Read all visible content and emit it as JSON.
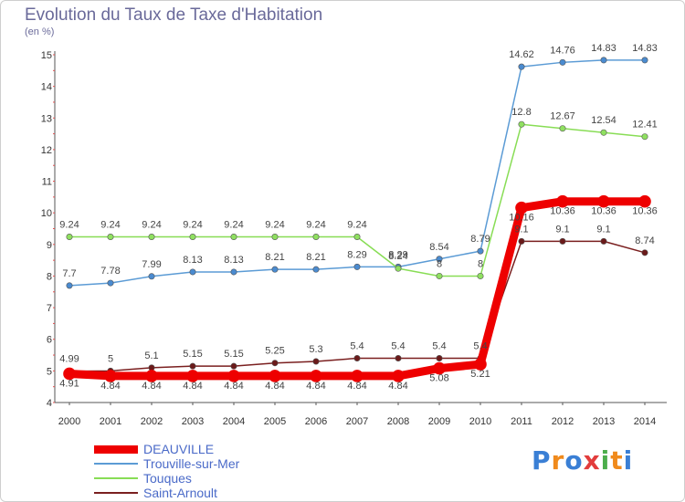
{
  "title": "Evolution du Taux de Taxe d'Habitation",
  "unit": "(en %)",
  "logo_text": "Proxiti",
  "chart_data": {
    "type": "line",
    "x": [
      2000,
      2001,
      2002,
      2003,
      2004,
      2005,
      2006,
      2007,
      2008,
      2009,
      2010,
      2011,
      2012,
      2013,
      2014
    ],
    "ylim": [
      4,
      15
    ],
    "yticks": [
      4,
      5,
      6,
      7,
      8,
      9,
      10,
      11,
      12,
      13,
      14,
      15
    ],
    "grid": false,
    "legend": "bottom-left",
    "series": [
      {
        "name": "DEAUVILLE",
        "color": "#ee0000",
        "width": 9,
        "values": [
          4.91,
          4.84,
          4.84,
          4.84,
          4.84,
          4.84,
          4.84,
          4.84,
          4.84,
          5.08,
          5.21,
          10.16,
          10.36,
          10.36,
          10.36
        ],
        "labels": [
          "4.91",
          "4.84",
          "4.84",
          "4.84",
          "4.84",
          "4.84",
          "4.84",
          "4.84",
          "4.84",
          "5.08",
          "5.21",
          "10.16",
          "10.36",
          "10.36",
          "10.36"
        ]
      },
      {
        "name": "Trouville-sur-Mer",
        "color": "#5b9bd5",
        "width": 1.5,
        "values": [
          7.7,
          7.78,
          7.99,
          8.13,
          8.13,
          8.21,
          8.21,
          8.29,
          8.29,
          8.54,
          8.79,
          14.62,
          14.76,
          14.83,
          14.83
        ],
        "labels": [
          "7.7",
          "7.78",
          "7.99",
          "8.13",
          "8.13",
          "8.21",
          "8.21",
          "8.29",
          "8.29",
          "8.54",
          "8.79",
          "14.62",
          "14.76",
          "14.83",
          "14.83"
        ]
      },
      {
        "name": "Touques",
        "color": "#88dd55",
        "width": 1.5,
        "values": [
          9.24,
          9.24,
          9.24,
          9.24,
          9.24,
          9.24,
          9.24,
          9.24,
          8.24,
          8,
          8,
          12.8,
          12.67,
          12.54,
          12.41
        ],
        "labels": [
          "9.24",
          "9.24",
          "9.24",
          "9.24",
          "9.24",
          "9.24",
          "9.24",
          "9.24",
          "8.24",
          "8",
          "8",
          "12.8",
          "12.67",
          "12.54",
          "12.41"
        ]
      },
      {
        "name": "Saint-Arnoult",
        "color": "#7a1f1f",
        "width": 1.5,
        "values": [
          4.99,
          5,
          5.1,
          5.15,
          5.15,
          5.25,
          5.3,
          5.4,
          5.4,
          5.4,
          5.4,
          9.1,
          9.1,
          9.1,
          8.74
        ],
        "labels": [
          "4.99",
          "5",
          "5.1",
          "5.15",
          "5.15",
          "5.25",
          "5.3",
          "5.4",
          "5.4",
          "5.4",
          "5.4",
          "9.1",
          "9.1",
          "9.1",
          "8.74"
        ]
      }
    ]
  }
}
